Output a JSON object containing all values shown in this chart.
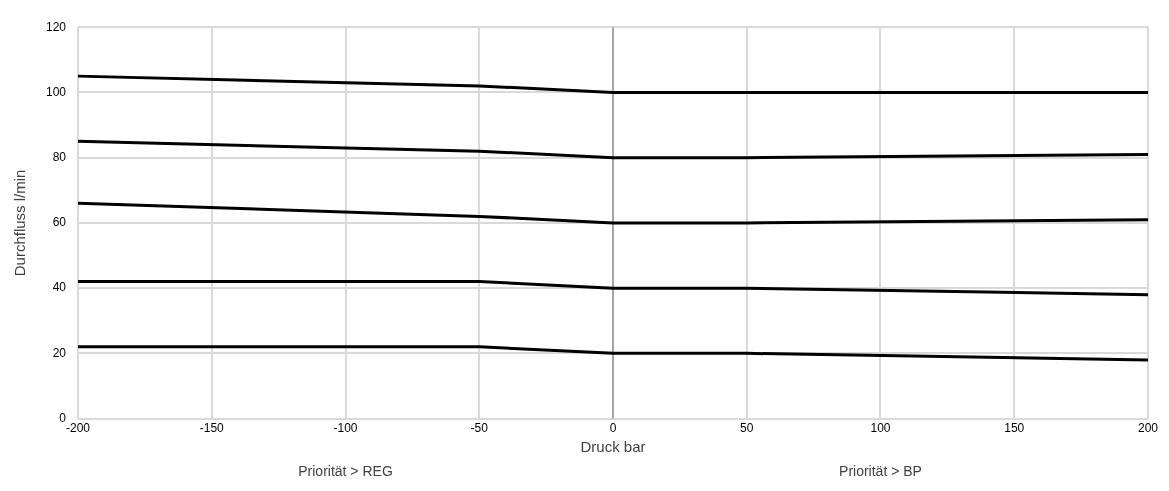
{
  "chart_data": {
    "type": "line",
    "xlabel": "Druck bar",
    "ylabel": "Durchfluss l/min",
    "xlim": [
      -200,
      200
    ],
    "xticks": [
      -200,
      -150,
      -100,
      -50,
      0,
      50,
      100,
      150,
      200
    ],
    "ylim": [
      0,
      120
    ],
    "yticks": [
      0,
      20,
      40,
      60,
      80,
      100,
      120
    ],
    "grid": true,
    "legend": false,
    "marker": "none",
    "line_style": "solid",
    "ref_lines": [
      {
        "axis": "x",
        "value": 0,
        "color": "#a6a6a6"
      }
    ],
    "annotations": [
      "Priorität > REG",
      "Priorität > BP"
    ],
    "series": [
      {
        "color": "#000000",
        "x": [
          -200,
          -50,
          0,
          200
        ],
        "values": [
          105,
          102,
          100,
          100
        ]
      },
      {
        "color": "#000000",
        "x": [
          -200,
          -50,
          0,
          50,
          200
        ],
        "values": [
          85,
          82,
          80,
          80,
          81
        ]
      },
      {
        "color": "#000000",
        "x": [
          -200,
          -50,
          0,
          50,
          200
        ],
        "values": [
          66,
          62,
          60,
          60,
          61
        ]
      },
      {
        "color": "#000000",
        "x": [
          -200,
          -50,
          0,
          50,
          200
        ],
        "values": [
          42,
          42,
          40,
          40,
          38
        ]
      },
      {
        "color": "#000000",
        "x": [
          -200,
          -50,
          0,
          50,
          200
        ],
        "values": [
          22,
          22,
          20,
          20,
          18
        ]
      }
    ]
  }
}
